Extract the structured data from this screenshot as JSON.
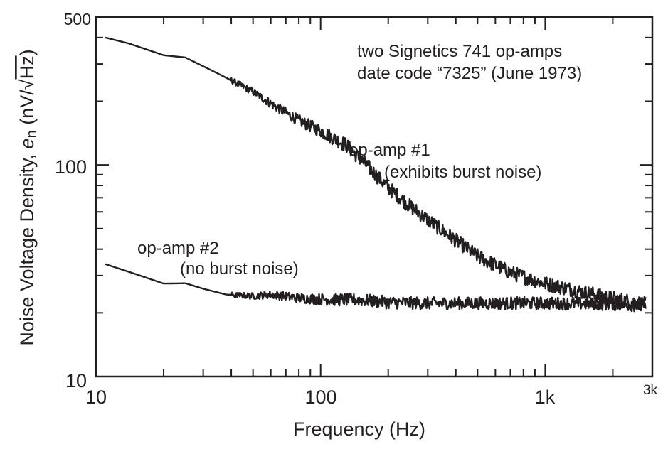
{
  "chart_data": {
    "type": "line",
    "xscale": "log",
    "yscale": "log",
    "xlim": [
      10,
      3000
    ],
    "ylim": [
      10,
      500
    ],
    "xlabel": "Frequency (Hz)",
    "ylabel_main": "Noise Voltage Density, ",
    "ylabel_sym": "e",
    "ylabel_sub": "n",
    "ylabel_unit_pre": " (nV/",
    "ylabel_unit_rad": "Hz",
    "ylabel_unit_post": ")",
    "x_ticks": [
      {
        "value": 10,
        "label": "10"
      },
      {
        "value": 100,
        "label": "100"
      },
      {
        "value": 1000,
        "label": "1k"
      },
      {
        "value": 3000,
        "label": "3k"
      }
    ],
    "y_ticks": [
      {
        "value": 10,
        "label": "10"
      },
      {
        "value": 100,
        "label": "100"
      },
      {
        "value": 500,
        "label": "500"
      }
    ],
    "annotations": {
      "title_line1": "two Signetics 741 op-amps",
      "title_line2": "date code “7325” (June 1973)",
      "opamp1_line1": "op-amp #1",
      "opamp1_line2": "(exhibits burst noise)",
      "opamp2_line1": "op-amp #2",
      "opamp2_line2": "(no burst noise)"
    },
    "series": [
      {
        "name": "op-amp #1",
        "color": "#231f20",
        "x": [
          11,
          14,
          20,
          25,
          35,
          50,
          60,
          80,
          100,
          130,
          160,
          200,
          250,
          300,
          400,
          500,
          700,
          1000,
          1500,
          2000,
          2800
        ],
        "y": [
          400,
          375,
          330,
          322,
          270,
          222,
          195,
          162,
          145,
          124,
          100,
          78,
          64,
          55,
          44,
          37,
          31,
          27.5,
          25,
          23.4,
          22
        ],
        "noise": 0.035
      },
      {
        "name": "op-amp #2",
        "color": "#231f20",
        "x": [
          11,
          15,
          20,
          25,
          30,
          38,
          50,
          60,
          80,
          100,
          150,
          200,
          300,
          500,
          1000,
          2000,
          2800
        ],
        "y": [
          34,
          30.5,
          27.5,
          27.6,
          26,
          24.4,
          24,
          24.4,
          23.5,
          23.2,
          23,
          22.4,
          22.2,
          22.2,
          22.2,
          22,
          21.6
        ],
        "noise": 0.03
      }
    ]
  }
}
